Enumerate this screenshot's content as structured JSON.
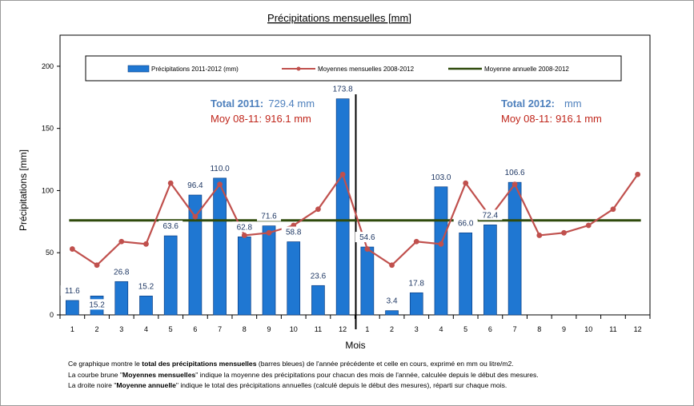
{
  "chart_data": {
    "type": "bar",
    "title": "Précipitations mensuelles [mm]",
    "xlabel": "Mois",
    "ylabel": "Précipitations [mm]",
    "ylim": [
      0,
      225
    ],
    "yticks": [
      0,
      50,
      100,
      150,
      200
    ],
    "categories": [
      "1",
      "2",
      "3",
      "4",
      "5",
      "6",
      "7",
      "8",
      "9",
      "10",
      "11",
      "12",
      "1",
      "2",
      "3",
      "4",
      "5",
      "6",
      "7",
      "8",
      "9",
      "10",
      "11",
      "12"
    ],
    "series": [
      {
        "name": "Précipitations 2011-2012 (mm)",
        "kind": "bar",
        "color": "#1f77d2",
        "values": [
          11.6,
          15.2,
          26.8,
          15.2,
          63.6,
          96.4,
          110.0,
          62.8,
          71.6,
          58.8,
          23.6,
          173.8,
          54.6,
          3.4,
          17.8,
          103.0,
          66.0,
          72.4,
          106.6,
          null,
          null,
          null,
          null,
          null
        ],
        "labels": [
          "11.6",
          "15.2",
          "26.8",
          "15.2",
          "63.6",
          "96.4",
          "110.0",
          "62.8",
          "71.6",
          "58.8",
          "23.6",
          "173.8",
          "54.6",
          "3.4",
          "17.8",
          "103.0",
          "66.0",
          "72.4",
          "106.6",
          "",
          "",
          "",
          "",
          ""
        ]
      },
      {
        "name": "Moyennes mensuelles 2008-2012",
        "kind": "line",
        "color": "#c0504d",
        "values": [
          53,
          40,
          59,
          57,
          106,
          79,
          105,
          64,
          66,
          72,
          85,
          113,
          53,
          40,
          59,
          57,
          106,
          79,
          105,
          64,
          66,
          72,
          85,
          113
        ]
      },
      {
        "name": "Moyenne annuelle 2008-2012",
        "kind": "hline",
        "color": "#2f4a0c",
        "value": 76
      }
    ],
    "grid": false,
    "legend_position": "top",
    "annotations": {
      "total_2011_label": "Total 2011:",
      "total_2011_value": "729.4 mm",
      "moy_2011_label": "Moy 08-11:",
      "moy_2011_value": "916.1 mm",
      "total_2012_label": "Total 2012:",
      "total_2012_value": "mm",
      "moy_2012_label": "Moy 08-11:",
      "moy_2012_value": "916.1 mm"
    },
    "colors": {
      "total_label": "#4f81bd",
      "moy_label": "#c0271c"
    }
  },
  "footnote": {
    "line1_a": "Ce graphique montre le ",
    "line1_b": "total des précipitations mensuelles",
    "line1_c": " (barres bleues) de l'année précédente et celle en cours, exprimé en mm ou litre/m2.",
    "line2_a": "La courbe brune \"",
    "line2_b": "Moyennes mensuelles",
    "line2_c": "\" indique la moyenne des précipitations pour chacun des mois de l'année, calculée depuis le début des mesures.",
    "line3_a": "La droite noire \"",
    "line3_b": "Moyenne annuelle",
    "line3_c": "\" indique le total des précipitations annuelles (calculé depuis le début des mesures), réparti sur chaque mois."
  }
}
